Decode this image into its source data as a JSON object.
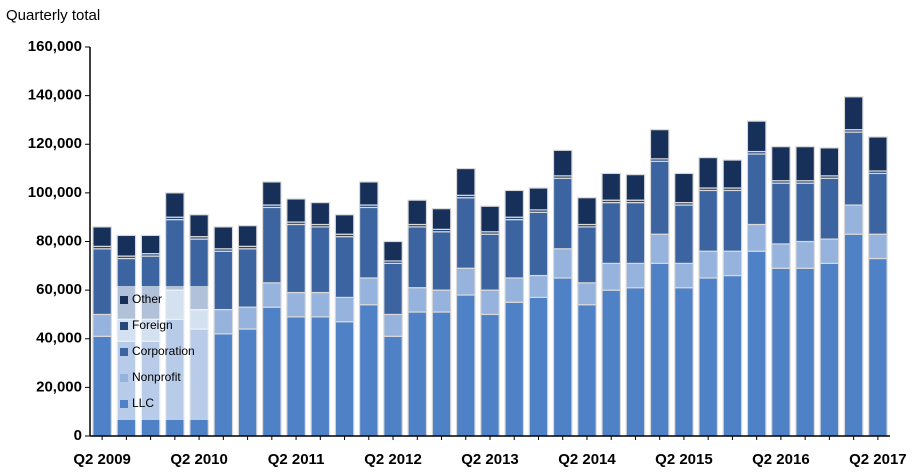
{
  "chart_data": {
    "type": "stacked_bar",
    "y_label": "Quarterly total",
    "categories": [
      "Q2 2009",
      null,
      null,
      null,
      "Q2 2010",
      null,
      null,
      null,
      "Q2 2011",
      null,
      null,
      null,
      "Q2 2012",
      null,
      null,
      null,
      "Q2 2013",
      null,
      null,
      null,
      "Q2 2014",
      null,
      null,
      null,
      "Q2 2015",
      null,
      null,
      null,
      "Q2 2016",
      null,
      null,
      null,
      "Q2 2017"
    ],
    "series": [
      {
        "name": "LLC",
        "color": "#4f81c7",
        "values": [
          41000,
          39000,
          39000,
          48000,
          44000,
          42000,
          44000,
          53000,
          49000,
          49000,
          47000,
          54000,
          41000,
          51000,
          51000,
          58000,
          50000,
          55000,
          57000,
          65000,
          54000,
          60000,
          61000,
          71000,
          61000,
          65000,
          66000,
          76000,
          69000,
          69000,
          71000,
          83000,
          73000
        ]
      },
      {
        "name": "Nonprofit",
        "color": "#95b3dc",
        "values": [
          9000,
          9000,
          9000,
          12000,
          8000,
          10000,
          9000,
          10000,
          10000,
          10000,
          10000,
          11000,
          9000,
          10000,
          9000,
          11000,
          10000,
          10000,
          9000,
          12000,
          9000,
          11000,
          10000,
          12000,
          10000,
          11000,
          10000,
          11000,
          10000,
          11000,
          10000,
          12000,
          10000
        ]
      },
      {
        "name": "Corporation",
        "color": "#3b64a0",
        "values": [
          27000,
          25000,
          26000,
          29000,
          29000,
          24000,
          24000,
          31000,
          28000,
          27000,
          25000,
          29000,
          21000,
          25000,
          24000,
          29000,
          23000,
          24000,
          26000,
          29000,
          23000,
          25000,
          25000,
          30000,
          24000,
          25000,
          25000,
          29000,
          25000,
          24000,
          25000,
          30000,
          25000
        ]
      },
      {
        "name": "Foreign",
        "color": "#26477a",
        "values": [
          1000,
          1000,
          1000,
          1000,
          1000,
          1000,
          1000,
          1000,
          1000,
          1000,
          1000,
          1000,
          1000,
          1000,
          1000,
          1000,
          1000,
          1000,
          1000,
          1000,
          1000,
          1000,
          1000,
          1000,
          1000,
          1000,
          1000,
          1000,
          1000,
          1000,
          1000,
          1000,
          1000
        ]
      },
      {
        "name": "Other",
        "color": "#17305a",
        "values": [
          8000,
          8500,
          7500,
          10000,
          9000,
          9000,
          8500,
          9500,
          9500,
          9000,
          8000,
          9500,
          8000,
          10000,
          8500,
          11000,
          10500,
          11000,
          9000,
          10500,
          11000,
          11000,
          10500,
          12000,
          12000,
          12500,
          11500,
          12500,
          14000,
          14000,
          11500,
          13500,
          14000
        ]
      }
    ],
    "ylim": [
      0,
      160000
    ],
    "yticks": [
      0,
      {
        "value": 20000,
        "label": "20,000"
      },
      {
        "value": 40000,
        "label": "40,000"
      },
      {
        "value": 60000,
        "label": "60,000"
      },
      {
        "value": 80000,
        "label": "80,000"
      },
      {
        "value": 100000,
        "label": "100,000"
      },
      {
        "value": 120000,
        "label": "120,000"
      },
      {
        "value": 140000,
        "label": "140,000"
      },
      {
        "value": 160000,
        "label": "160,000"
      }
    ],
    "legend": "lower left"
  }
}
